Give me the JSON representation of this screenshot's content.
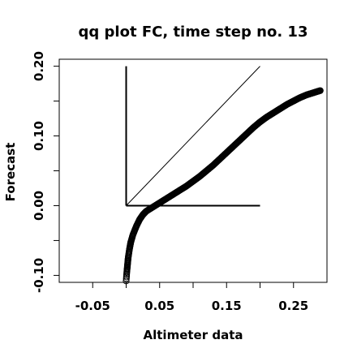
{
  "chart_data": {
    "type": "scatter",
    "title": "qq plot FC, time step no. 13",
    "xlabel": "Altimeter data",
    "ylabel": "Forecast",
    "xlim": [
      -0.1,
      0.3
    ],
    "ylim": [
      -0.11,
      0.21
    ],
    "x_ticks": [
      -0.05,
      0.05,
      0.15,
      0.25
    ],
    "x_tick_labels": [
      "-0.05",
      "0.05",
      "0.15",
      "0.25"
    ],
    "x_minor_ticks": [
      0.0,
      0.1,
      0.2
    ],
    "y_ticks": [
      -0.1,
      0.0,
      0.1,
      0.2
    ],
    "y_tick_labels": [
      "-0.10",
      "0.00",
      "0.10",
      "0.20"
    ],
    "y_minor_ticks": [
      -0.05,
      0.05,
      0.15
    ],
    "grid": false,
    "legend": "none",
    "reference_lines": [
      {
        "name": "identity",
        "x": [
          0.0,
          0.2
        ],
        "y": [
          0.0,
          0.2
        ]
      },
      {
        "name": "zero-horizontal",
        "x": [
          0.0,
          0.2
        ],
        "y": [
          0.0,
          0.0
        ]
      },
      {
        "name": "zero-vertical",
        "x": [
          0.0,
          0.0
        ],
        "y": [
          0.0,
          0.2
        ]
      }
    ],
    "series": [
      {
        "marker": "open-circle",
        "x": [
          0.0,
          0.001,
          0.002,
          0.003,
          0.005,
          0.007,
          0.01,
          0.015,
          0.02,
          0.025,
          0.03,
          0.04,
          0.05,
          0.06,
          0.07,
          0.08,
          0.09,
          0.1,
          0.11,
          0.12,
          0.13,
          0.14,
          0.15,
          0.16,
          0.17,
          0.18,
          0.19,
          0.2,
          0.21,
          0.22,
          0.23,
          0.24,
          0.25,
          0.26,
          0.27,
          0.28,
          0.29
        ],
        "y": [
          -0.108,
          -0.095,
          -0.085,
          -0.075,
          -0.062,
          -0.052,
          -0.042,
          -0.03,
          -0.02,
          -0.013,
          -0.008,
          -0.002,
          0.004,
          0.01,
          0.016,
          0.022,
          0.028,
          0.035,
          0.042,
          0.05,
          0.058,
          0.067,
          0.076,
          0.085,
          0.094,
          0.103,
          0.112,
          0.12,
          0.127,
          0.133,
          0.139,
          0.145,
          0.15,
          0.155,
          0.159,
          0.162,
          0.165
        ]
      }
    ]
  }
}
